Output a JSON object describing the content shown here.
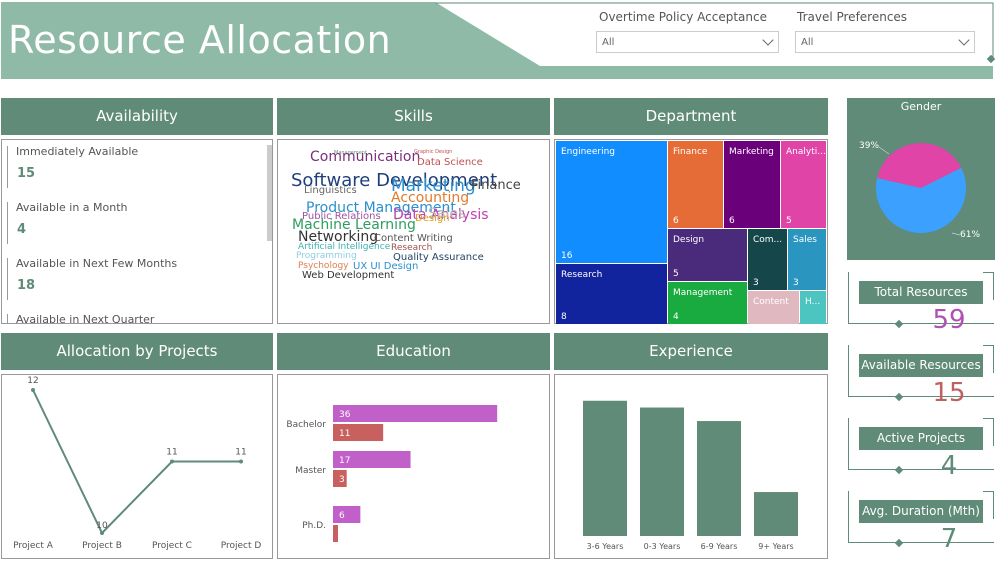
{
  "header": {
    "title": "Resource Allocation"
  },
  "filters": [
    {
      "label": "Overtime Policy Acceptance",
      "value": "All"
    },
    {
      "label": "Travel Preferences",
      "value": "All"
    }
  ],
  "availability": {
    "title": "Availability",
    "items": [
      {
        "label": "Immediately Available",
        "value": "15"
      },
      {
        "label": "Available in a Month",
        "value": "4"
      },
      {
        "label": "Available in Next Few Months",
        "value": "18"
      },
      {
        "label": "Available in Next Quarter",
        "value": ""
      }
    ]
  },
  "skills": {
    "title": "Skills",
    "words": [
      {
        "text": "Management",
        "color": "#5f8b78",
        "size": 5
      },
      {
        "text": "Graphic Design",
        "color": "#c05050",
        "size": 5
      },
      {
        "text": "Communication",
        "color": "#7a2f7a",
        "size": 14
      },
      {
        "text": "Data Science",
        "color": "#c05050",
        "size": 10
      },
      {
        "text": "Software Development",
        "color": "#1f3f7a",
        "size": 18
      },
      {
        "text": "Marketing",
        "color": "#2b8fd0",
        "size": 17
      },
      {
        "text": "Finance",
        "color": "#444444",
        "size": 13
      },
      {
        "text": "Linguistics",
        "color": "#666666",
        "size": 10
      },
      {
        "text": "Accounting",
        "color": "#e07b2e",
        "size": 14
      },
      {
        "text": "Product Management",
        "color": "#2b8fd0",
        "size": 14
      },
      {
        "text": "Data Analysis",
        "color": "#c040b0",
        "size": 14
      },
      {
        "text": "Sales",
        "color": "#bbbbbb",
        "size": 14
      },
      {
        "text": "Public Relations",
        "color": "#a050a0",
        "size": 10
      },
      {
        "text": "Design",
        "color": "#e0a020",
        "size": 10
      },
      {
        "text": "Machine Learning",
        "color": "#2e9d60",
        "size": 14
      },
      {
        "text": "Networking",
        "color": "#333333",
        "size": 14
      },
      {
        "text": "Content Writing",
        "color": "#555555",
        "size": 10
      },
      {
        "text": "Artificial Intelligence",
        "color": "#40b0b0",
        "size": 9
      },
      {
        "text": "Research",
        "color": "#a05050",
        "size": 9
      },
      {
        "text": "Programming",
        "color": "#8ecfe0",
        "size": 9
      },
      {
        "text": "Quality Assurance",
        "color": "#224466",
        "size": 10
      },
      {
        "text": "Psychology",
        "color": "#e08050",
        "size": 9
      },
      {
        "text": "UX UI Design",
        "color": "#2b8fd0",
        "size": 10
      },
      {
        "text": "Web Development",
        "color": "#333333",
        "size": 10
      }
    ]
  },
  "department": {
    "title": "Department",
    "cells": [
      {
        "name": "Engineering",
        "value": "16",
        "color": "#118dff"
      },
      {
        "name": "Research",
        "value": "8",
        "color": "#12239e"
      },
      {
        "name": "Finance",
        "value": "6",
        "color": "#e66c37"
      },
      {
        "name": "Marketing",
        "value": "6",
        "color": "#6b007b"
      },
      {
        "name": "Analyti...",
        "value": "5",
        "color": "#e044a7"
      },
      {
        "name": "Design",
        "value": "5",
        "color": "#4a2a7a"
      },
      {
        "name": "Com...",
        "value": "3",
        "color": "#15474a"
      },
      {
        "name": "Sales",
        "value": "3",
        "color": "#2a96c0"
      },
      {
        "name": "Management",
        "value": "4",
        "color": "#1aab40"
      },
      {
        "name": "Content",
        "value": "",
        "color": "#e0b8c0"
      },
      {
        "name": "H...",
        "value": "",
        "color": "#4cc4c0"
      }
    ]
  },
  "gender": {
    "title": "Gender",
    "label_a": "39%",
    "label_b": "61%",
    "color_a": "#e044a7",
    "color_b": "#3ca0ff"
  },
  "kpis": [
    {
      "label": "Total Resources",
      "value": "59",
      "color": "#b050b0"
    },
    {
      "label": "Available Resources",
      "value": "15",
      "color": "#c06060"
    },
    {
      "label": "Active Projects",
      "value": "4",
      "color": "#5f8b78"
    },
    {
      "label": "Avg. Duration (Mth)",
      "value": "7",
      "color": "#5f8b78"
    }
  ],
  "projects": {
    "title": "Allocation by Projects"
  },
  "education": {
    "title": "Education"
  },
  "experience": {
    "title": "Experience"
  },
  "chart_data": [
    {
      "type": "line",
      "title": "Allocation by Projects",
      "categories": [
        "Project A",
        "Project B",
        "Project C",
        "Project D"
      ],
      "values": [
        12,
        10,
        11,
        11
      ],
      "data_labels": [
        "12",
        "10",
        "11",
        "11"
      ],
      "color": "#5f8b78"
    },
    {
      "type": "bar",
      "orientation": "horizontal",
      "title": "Education",
      "categories": [
        "Bachelor",
        "Master",
        "Ph.D."
      ],
      "series": [
        {
          "values": [
            36,
            17,
            6
          ],
          "color": "#c060c8"
        },
        {
          "values": [
            11,
            3,
            1
          ],
          "color": "#c86060"
        }
      ],
      "data_labels": [
        [
          "36",
          "17",
          "6"
        ],
        [
          "11",
          "3",
          ""
        ]
      ],
      "xlim": [
        0,
        40
      ]
    },
    {
      "type": "bar",
      "title": "Experience",
      "categories": [
        "3-6 Years",
        "0-3 Years",
        "6-9 Years",
        "9+ Years"
      ],
      "values": [
        20,
        19,
        17,
        6.5
      ],
      "ylim": [
        0,
        21
      ],
      "color": "#5f8b78"
    }
  ]
}
